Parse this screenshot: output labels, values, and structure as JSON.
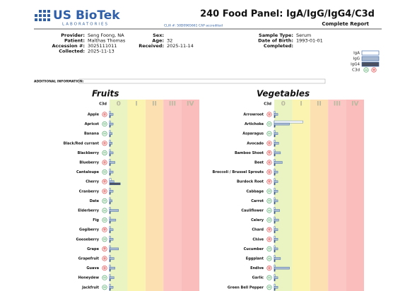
{
  "header": {
    "logo": "US BioTek",
    "logo_sub": "LABORATORIES",
    "title": "240 Food Panel: IgA/IgG/IgG4/C3d",
    "subtitle": "Complete Report",
    "clia": "CLIA #: 50D0965661  CAP accredited"
  },
  "patient": [
    [
      {
        "label": "Provider:",
        "value": "Seng Foong, NA"
      },
      {
        "label": "Patient:",
        "value": "Malthas Thomas"
      },
      {
        "label": "Accession #:",
        "value": "3025111011"
      },
      {
        "label": "Collected:",
        "value": "2025-11-13"
      }
    ],
    [
      {
        "label": "Sex:"
      },
      {
        "label": "Age:",
        "value": "32"
      },
      {
        "label": "Received:",
        "value": "2025-11-14"
      }
    ],
    [
      {
        "label": "Sample Type:",
        "value": "Serum"
      },
      {
        "label": "Date of Birth:",
        "value": "1993-01-01"
      },
      {
        "label": "Completed:"
      }
    ]
  ],
  "additional": "ADDITIONAL INFORMATION:",
  "legend": [
    "IgA",
    "IgG",
    "IgG4",
    "C3d"
  ],
  "colors": {
    "iga": "#ffffff",
    "igg": "#a9b9cf",
    "igg4": "#4a5060",
    "plus": "#e04848",
    "minus": "#52a56a"
  },
  "class_colors": [
    "#eaf3c2",
    "#fbf4b0",
    "#fde0b2",
    "#fbc6c4",
    "#fbbcbc"
  ],
  "classes": [
    "0",
    "I",
    "II",
    "III",
    "IV"
  ],
  "scale": [
    0,
    5
  ],
  "c3d_header": "C3d",
  "panels": [
    {
      "title": "Fruits",
      "rows": [
        {
          "name": "Apple",
          "c3d": "+",
          "iga": 0.05,
          "igg": 0.2,
          "igg4": 0.05
        },
        {
          "name": "Apricot",
          "c3d": "−",
          "iga": 0.05,
          "igg": 0.2,
          "igg4": 0.05
        },
        {
          "name": "Banana",
          "c3d": "−",
          "iga": 0.05,
          "igg": 0.15,
          "igg4": 0.05
        },
        {
          "name": "Black/Red currant",
          "c3d": "+",
          "iga": 0.05,
          "igg": 0.15,
          "igg4": 0.05
        },
        {
          "name": "Blackberry",
          "c3d": "−",
          "iga": 0.05,
          "igg": 0.2,
          "igg4": 0.05
        },
        {
          "name": "Blueberry",
          "c3d": "+",
          "iga": 0.05,
          "igg": 0.3,
          "igg4": 0.05
        },
        {
          "name": "Cantaloupe",
          "c3d": "−",
          "iga": 0.05,
          "igg": 0.2,
          "igg4": 0.05
        },
        {
          "name": "Cherry",
          "c3d": "+",
          "iga": 0.1,
          "igg": 0.25,
          "igg4": 0.6
        },
        {
          "name": "Cranberry",
          "c3d": "+",
          "iga": 0.05,
          "igg": 0.2,
          "igg4": 0.05
        },
        {
          "name": "Date",
          "c3d": "−",
          "iga": 0.05,
          "igg": 0.15,
          "igg4": 0.05
        },
        {
          "name": "Elderberry",
          "c3d": "−",
          "iga": 0.05,
          "igg": 0.5,
          "igg4": 0.05
        },
        {
          "name": "Fig",
          "c3d": "−",
          "iga": 0.05,
          "igg": 0.35,
          "igg4": 0.05
        },
        {
          "name": "Gogiberry",
          "c3d": "+",
          "iga": 0.05,
          "igg": 0.2,
          "igg4": 0.05
        },
        {
          "name": "Gooseberry",
          "c3d": "−",
          "iga": 0.05,
          "igg": 0.2,
          "igg4": 0.05
        },
        {
          "name": "Grape",
          "c3d": "+",
          "iga": 0.05,
          "igg": 0.5,
          "igg4": 0.05
        },
        {
          "name": "Grapefruit",
          "c3d": "+",
          "iga": 0.05,
          "igg": 0.25,
          "igg4": 0.05
        },
        {
          "name": "Guava",
          "c3d": "+",
          "iga": 0.05,
          "igg": 0.3,
          "igg4": 0.05
        },
        {
          "name": "Honeydew",
          "c3d": "−",
          "iga": 0.05,
          "igg": 0.25,
          "igg4": 0.05
        },
        {
          "name": "Jackfruit",
          "c3d": "−",
          "iga": 0.05,
          "igg": 0.2,
          "igg4": 0.05
        }
      ]
    },
    {
      "title": "Vegetables",
      "rows": [
        {
          "name": "Arrowroot",
          "c3d": "+",
          "iga": 0.05,
          "igg": 0.2,
          "igg4": 0.05
        },
        {
          "name": "Artichoke",
          "c3d": "−",
          "iga": 1.6,
          "igg": 0.85,
          "igg4": 0.05
        },
        {
          "name": "Asparagus",
          "c3d": "−",
          "iga": 0.05,
          "igg": 0.2,
          "igg4": 0.05
        },
        {
          "name": "Avocado",
          "c3d": "+",
          "iga": 0.05,
          "igg": 0.25,
          "igg4": 0.05
        },
        {
          "name": "Bamboo Shoot",
          "c3d": "+",
          "iga": 0.05,
          "igg": 0.35,
          "igg4": 0.05
        },
        {
          "name": "Beet",
          "c3d": "+",
          "iga": 0.05,
          "igg": 0.45,
          "igg4": 0.05
        },
        {
          "name": "Broccoli / Brussel Sprouts",
          "c3d": "+",
          "iga": 0.05,
          "igg": 0.2,
          "igg4": 0.05
        },
        {
          "name": "Burdock Root",
          "c3d": "+",
          "iga": 0.05,
          "igg": 0.2,
          "igg4": 0.05
        },
        {
          "name": "Cabbage",
          "c3d": "−",
          "iga": 0.05,
          "igg": 0.2,
          "igg4": 0.05
        },
        {
          "name": "Carrot",
          "c3d": "−",
          "iga": 0.05,
          "igg": 0.2,
          "igg4": 0.05
        },
        {
          "name": "Cauliflower",
          "c3d": "−",
          "iga": 0.05,
          "igg": 0.3,
          "igg4": 0.05
        },
        {
          "name": "Celery",
          "c3d": "−",
          "iga": 0.05,
          "igg": 0.25,
          "igg4": 0.05
        },
        {
          "name": "Chard",
          "c3d": "+",
          "iga": 0.05,
          "igg": 0.2,
          "igg4": 0.05
        },
        {
          "name": "Chive",
          "c3d": "+",
          "iga": 0.05,
          "igg": 0.2,
          "igg4": 0.05
        },
        {
          "name": "Cucumber",
          "c3d": "−",
          "iga": 0.05,
          "igg": 0.2,
          "igg4": 0.05
        },
        {
          "name": "Eggplant",
          "c3d": "−",
          "iga": 0.05,
          "igg": 0.35,
          "igg4": 0.05
        },
        {
          "name": "Endive",
          "c3d": "+",
          "iga": 0.05,
          "igg": 0.85,
          "igg4": 0.05
        },
        {
          "name": "Garlic",
          "c3d": "−",
          "iga": 0.05,
          "igg": 0.2,
          "igg4": 0.05
        },
        {
          "name": "Green Bell Pepper",
          "c3d": "−",
          "iga": 0.05,
          "igg": 0.2,
          "igg4": 0.05
        }
      ]
    }
  ]
}
